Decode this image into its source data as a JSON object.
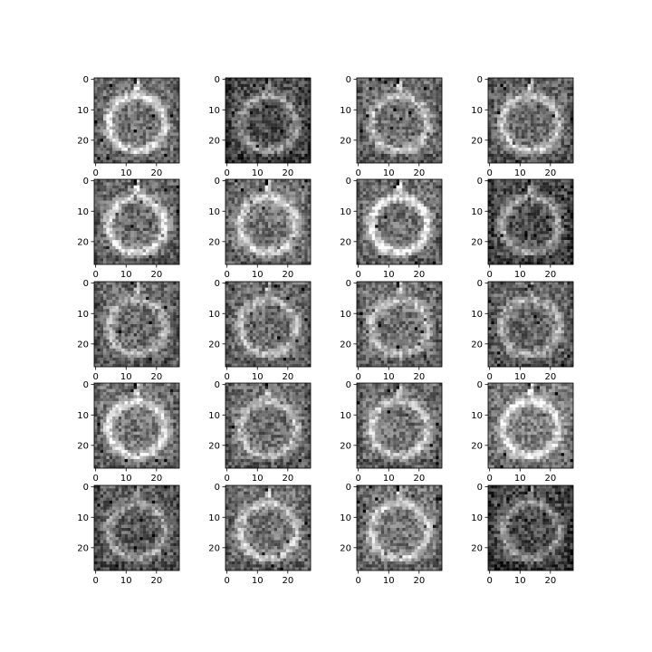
{
  "chart_data": {
    "type": "heatmap",
    "grid": {
      "rows": 5,
      "cols": 4
    },
    "colormap": "gray",
    "image_size": [
      28,
      28
    ],
    "xlim": [
      -0.5,
      27.5
    ],
    "ylim": [
      27.5,
      -0.5
    ],
    "x_ticks": [
      0,
      10,
      20
    ],
    "x_tick_labels": [
      "0",
      "10",
      "20"
    ],
    "y_ticks": [
      0,
      10,
      20
    ],
    "y_tick_labels": [
      "0",
      "10",
      "20"
    ],
    "image_description": "generated 28x28 grayscale sample: bright oval ring with a small dark-and-bright stem at the top center, noisy gray background",
    "panels": [
      {
        "contrast": 0.92,
        "background": 0.44,
        "seed": 11
      },
      {
        "contrast": 0.62,
        "background": 0.3,
        "seed": 12
      },
      {
        "contrast": 0.7,
        "background": 0.42,
        "seed": 13
      },
      {
        "contrast": 0.8,
        "background": 0.4,
        "seed": 14
      },
      {
        "contrast": 0.95,
        "background": 0.42,
        "seed": 15
      },
      {
        "contrast": 0.78,
        "background": 0.46,
        "seed": 16
      },
      {
        "contrast": 1.0,
        "background": 0.44,
        "seed": 17
      },
      {
        "contrast": 0.72,
        "background": 0.3,
        "seed": 18
      },
      {
        "contrast": 0.55,
        "background": 0.42,
        "seed": 19
      },
      {
        "contrast": 0.62,
        "background": 0.42,
        "seed": 20
      },
      {
        "contrast": 0.64,
        "background": 0.44,
        "seed": 21
      },
      {
        "contrast": 0.58,
        "background": 0.4,
        "seed": 22
      },
      {
        "contrast": 0.9,
        "background": 0.46,
        "seed": 23
      },
      {
        "contrast": 0.68,
        "background": 0.42,
        "seed": 24
      },
      {
        "contrast": 0.72,
        "background": 0.44,
        "seed": 25
      },
      {
        "contrast": 0.85,
        "background": 0.5,
        "seed": 26
      },
      {
        "contrast": 0.58,
        "background": 0.36,
        "seed": 27
      },
      {
        "contrast": 0.7,
        "background": 0.44,
        "seed": 28
      },
      {
        "contrast": 0.74,
        "background": 0.46,
        "seed": 29
      },
      {
        "contrast": 0.62,
        "background": 0.28,
        "seed": 30
      }
    ]
  }
}
